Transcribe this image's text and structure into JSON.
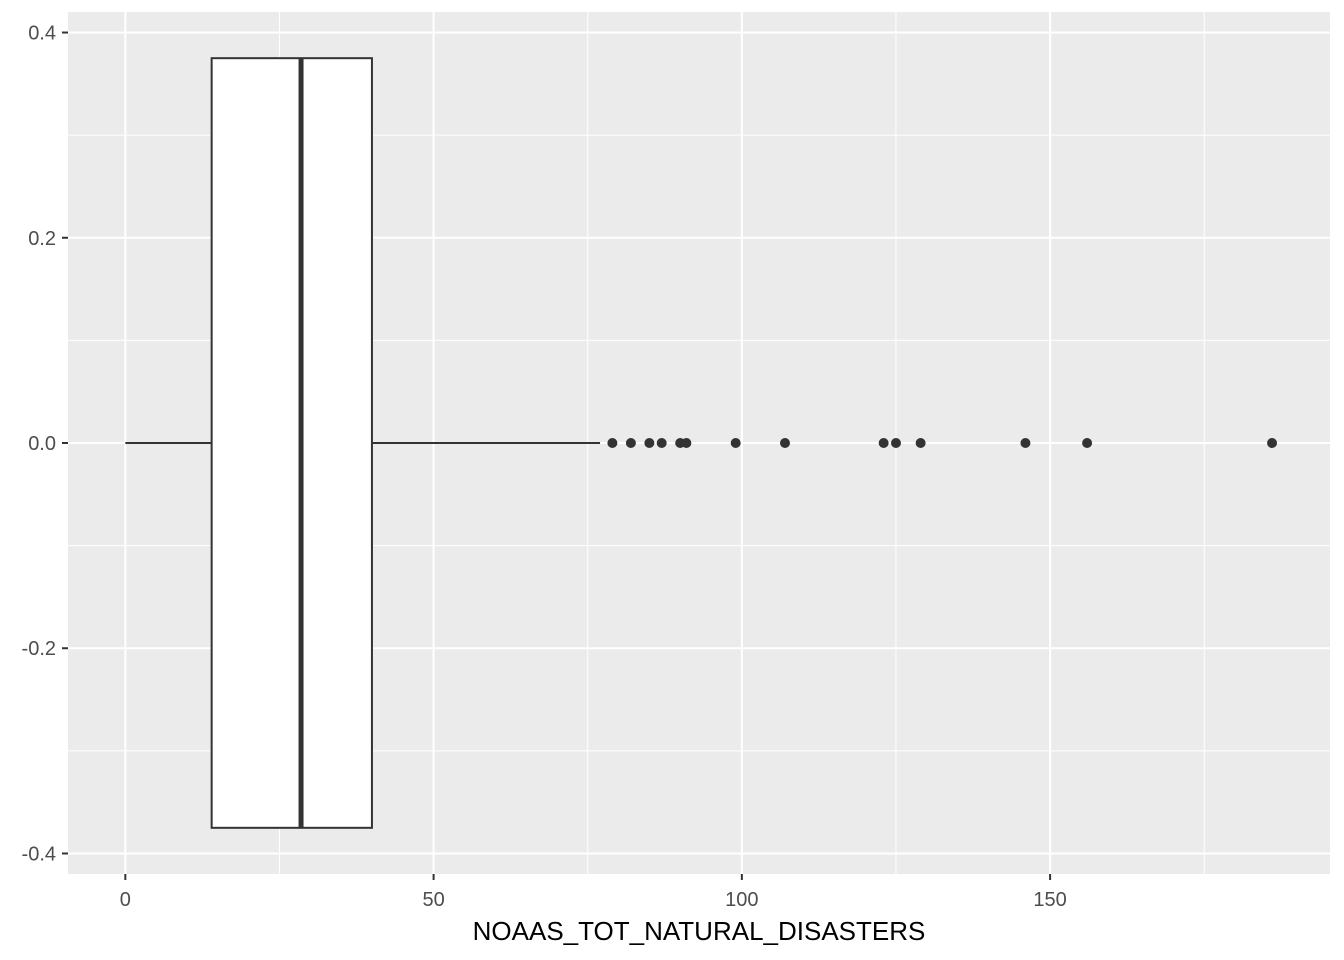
{
  "chart_data": {
    "type": "boxplot",
    "orientation": "horizontal",
    "title": "",
    "xlabel": "NOAAS_TOT_NATURAL_DISASTERS",
    "ylabel": "",
    "xlim": [
      -9.3,
      195.4
    ],
    "ylim": [
      -0.42,
      0.42
    ],
    "x_ticks": [
      0,
      50,
      100,
      150
    ],
    "x_tick_labels": [
      "0",
      "50",
      "100",
      "150"
    ],
    "y_ticks": [
      -0.4,
      -0.2,
      0.0,
      0.2,
      0.4
    ],
    "y_tick_labels": [
      "-0.4",
      "-0.2",
      "0.0",
      "0.2",
      "0.4"
    ],
    "grid": true,
    "colors": {
      "panel": "#ebebeb",
      "grid": "#ffffff",
      "box_fill": "#ffffff",
      "box_line": "#333333"
    },
    "box": {
      "min": 0,
      "q1": 14,
      "median": 28.5,
      "q3": 40,
      "max": 77,
      "y_center": 0,
      "half_width": 0.375
    },
    "outliers": [
      79,
      82,
      85,
      87,
      90,
      91,
      99,
      107,
      123,
      125,
      129,
      146,
      156,
      186
    ]
  }
}
